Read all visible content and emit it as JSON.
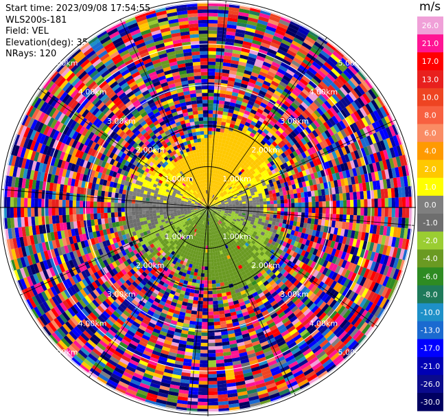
{
  "info": {
    "start_time": "Start time: 2023/09/08 17:54:55",
    "instrument": "WLS200s-181",
    "field": "Field: VEL",
    "elevation": "Elevation(deg): 35.30",
    "nrays": "NRays: 120"
  },
  "colorbar": {
    "title": "m/s",
    "ticks": [
      "26.0",
      "21.0",
      "17.0",
      "13.0",
      "10.0",
      "8.0",
      "6.0",
      "4.0",
      "2.0",
      "1.0",
      "0.0",
      "-1.0",
      "-2.0",
      "-4.0",
      "-6.0",
      "-8.0",
      "-10.0",
      "-13.0",
      "-17.0",
      "-21.0",
      "-26.0",
      "-30.0"
    ],
    "colors": [
      "#f0a0d8",
      "#ff1493",
      "#ff0000",
      "#e8201e",
      "#ee4422",
      "#f86040",
      "#fa8c64",
      "#ff9a00",
      "#ffc800",
      "#ffff00",
      "#7f7f7f",
      "#6e6e6e",
      "#9acd32",
      "#6a9a22",
      "#2e8b22",
      "#1e7a5a",
      "#1e90c8",
      "#1a6ad0",
      "#0000ff",
      "#0000b4",
      "#0a0a8c",
      "#000060"
    ]
  },
  "chart_data": {
    "type": "heatmap",
    "projection": "polar PPI",
    "field": "VEL",
    "units": "m/s",
    "n_rays": 120,
    "elevation_deg": 35.3,
    "range_ring_labels": [
      "1.00km",
      "2.00km",
      "3.00km",
      "4.00km",
      "5.00km"
    ],
    "color_range": [
      -30.0,
      26.0
    ],
    "pattern": "coherent low velocities near center: positive (1 to 4 m/s, yellow) to the north, near zero (grey) band across center, negative (-2 to -6 m/s, green) to the south; outer ranges dominated by noise across the full color scale"
  }
}
